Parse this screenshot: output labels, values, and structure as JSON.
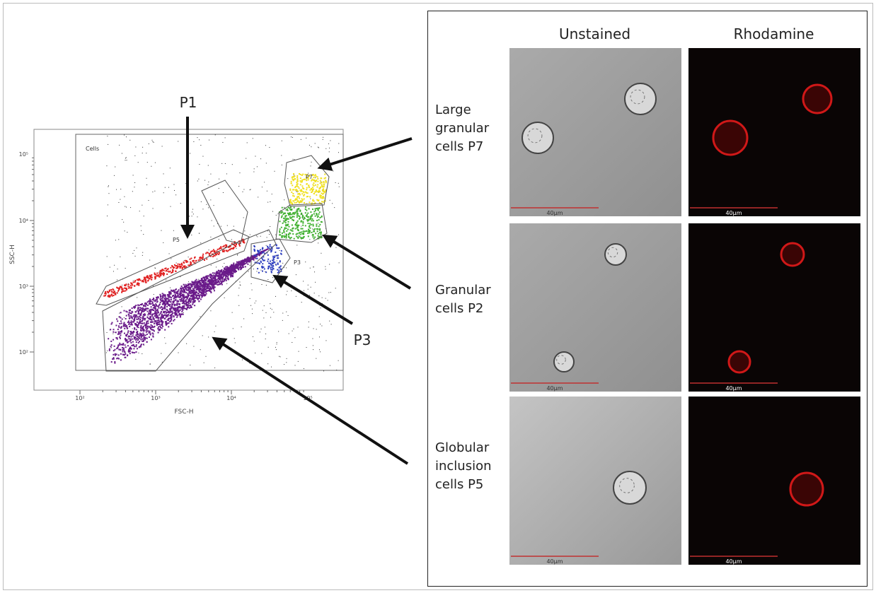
{
  "flow_plot": {
    "gate_box_label": "Cells",
    "x_axis_label": "FSC-H",
    "y_axis_label": "SSC-H",
    "x_ticks": [
      "10²",
      "10³",
      "10⁴",
      "10⁵"
    ],
    "y_ticks": [
      "10²",
      "10³",
      "10⁴",
      "10⁵"
    ],
    "gate_labels": [
      "P7",
      "P5",
      "P3"
    ]
  },
  "callouts": [
    "P1",
    "P3"
  ],
  "micrographs": {
    "columns": [
      "Unstained",
      "Rhodamine"
    ],
    "rows": [
      {
        "label": "Large granular cells P7",
        "scale_bars": [
          "40µm",
          "40µm"
        ]
      },
      {
        "label": "Granular cells P2",
        "scale_bars": [
          "40µm",
          "40µm"
        ]
      },
      {
        "label": "Globular inclusion cells P5",
        "scale_bars": [
          "40µm",
          "40µm"
        ]
      }
    ]
  }
}
